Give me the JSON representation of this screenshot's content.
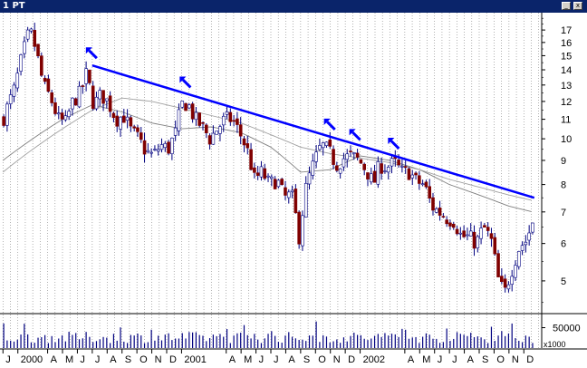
{
  "window": {
    "title": "1 PT",
    "buttons": [
      "minimize",
      "close"
    ]
  },
  "colors": {
    "titlebar": "#0a246a",
    "trendline": "#0000ff",
    "arrows": "#0000ff",
    "up_candle": "#ffffff",
    "down_candle": "#800000",
    "wick": "#000080",
    "moving_average": "#808080",
    "grid": "#808080"
  },
  "chart_data": {
    "type": "candlestick",
    "y_scale": "log",
    "ylim": [
      4.3,
      18.5
    ],
    "y_ticks": [
      5,
      6,
      7,
      8,
      9,
      10,
      11,
      12,
      13,
      14,
      15,
      16,
      17
    ],
    "x_labels": [
      "J",
      "2000",
      "A",
      "M",
      "J",
      "J",
      "A",
      "S",
      "O",
      "N",
      "D",
      "2001",
      "A",
      "M",
      "J",
      "J",
      "A",
      "S",
      "O",
      "N",
      "D",
      "2002",
      "A",
      "M",
      "J",
      "J",
      "A",
      "S",
      "O",
      "N",
      "D"
    ],
    "x_label_months": [
      0,
      1,
      3,
      4,
      5,
      6,
      7,
      8,
      9,
      10,
      11,
      12,
      15,
      16,
      17,
      18,
      19,
      20,
      21,
      22,
      23,
      24,
      27,
      28,
      29,
      30,
      31,
      32,
      33,
      34,
      35
    ],
    "x_month_range": [
      -0.2,
      36.2
    ],
    "grid": "vertical dotted",
    "price_keypoints_month_close": [
      [
        0.0,
        11.0
      ],
      [
        0.8,
        12.8
      ],
      [
        1.3,
        15.0
      ],
      [
        1.8,
        17.0
      ],
      [
        2.2,
        15.5
      ],
      [
        2.7,
        13.0
      ],
      [
        3.2,
        12.2
      ],
      [
        3.7,
        11.0
      ],
      [
        4.2,
        10.8
      ],
      [
        4.7,
        12.0
      ],
      [
        5.2,
        12.5
      ],
      [
        5.6,
        13.7
      ],
      [
        6.1,
        11.8
      ],
      [
        6.6,
        12.4
      ],
      [
        7.1,
        11.9
      ],
      [
        7.6,
        11.0
      ],
      [
        8.1,
        11.2
      ],
      [
        8.6,
        10.4
      ],
      [
        9.1,
        10.0
      ],
      [
        9.6,
        9.4
      ],
      [
        10.1,
        9.2
      ],
      [
        10.6,
        9.7
      ],
      [
        11.1,
        9.5
      ],
      [
        11.6,
        10.3
      ],
      [
        12.0,
        11.8
      ],
      [
        12.4,
        11.9
      ],
      [
        12.9,
        11.0
      ],
      [
        13.4,
        10.6
      ],
      [
        13.9,
        10.0
      ],
      [
        14.4,
        10.5
      ],
      [
        14.9,
        11.0
      ],
      [
        15.4,
        11.0
      ],
      [
        15.9,
        10.3
      ],
      [
        16.4,
        9.5
      ],
      [
        16.9,
        8.2
      ],
      [
        17.4,
        8.5
      ],
      [
        17.9,
        8.0
      ],
      [
        18.4,
        8.2
      ],
      [
        18.9,
        7.5
      ],
      [
        19.4,
        7.6
      ],
      [
        19.9,
        6.2
      ],
      [
        20.4,
        8.0
      ],
      [
        20.9,
        8.9
      ],
      [
        21.4,
        9.7
      ],
      [
        21.9,
        9.4
      ],
      [
        22.4,
        8.8
      ],
      [
        22.9,
        9.1
      ],
      [
        23.4,
        9.2
      ],
      [
        23.9,
        9.0
      ],
      [
        24.4,
        8.6
      ],
      [
        24.9,
        8.0
      ],
      [
        25.3,
        8.8
      ],
      [
        25.8,
        8.7
      ],
      [
        26.3,
        8.9
      ],
      [
        26.8,
        8.5
      ],
      [
        27.3,
        8.5
      ],
      [
        27.8,
        8.1
      ],
      [
        28.3,
        8.0
      ],
      [
        28.8,
        7.2
      ],
      [
        29.3,
        7.0
      ],
      [
        29.8,
        6.8
      ],
      [
        30.3,
        6.7
      ],
      [
        30.8,
        6.2
      ],
      [
        31.3,
        6.2
      ],
      [
        31.8,
        6.0
      ],
      [
        32.3,
        6.5
      ],
      [
        32.8,
        6.1
      ],
      [
        33.3,
        5.0
      ],
      [
        33.7,
        4.7
      ],
      [
        34.2,
        5.3
      ],
      [
        34.7,
        5.9
      ],
      [
        35.2,
        6.1
      ],
      [
        35.6,
        6.7
      ]
    ],
    "moving_averages": [
      {
        "color": "#808080",
        "keypoints_month_value": [
          [
            0.0,
            9.0
          ],
          [
            2.0,
            10.0
          ],
          [
            4.0,
            11.0
          ],
          [
            6.0,
            11.8
          ],
          [
            8.0,
            11.4
          ],
          [
            10.0,
            10.8
          ],
          [
            12.0,
            10.5
          ],
          [
            14.0,
            10.6
          ],
          [
            16.0,
            10.3
          ],
          [
            18.0,
            9.6
          ],
          [
            20.0,
            8.5
          ],
          [
            22.0,
            8.6
          ],
          [
            24.0,
            9.2
          ],
          [
            26.0,
            9.0
          ],
          [
            28.0,
            8.6
          ],
          [
            30.0,
            8.0
          ],
          [
            32.0,
            7.6
          ],
          [
            34.0,
            7.2
          ],
          [
            35.6,
            7.0
          ]
        ]
      },
      {
        "color": "#a0a0a0",
        "keypoints_month_value": [
          [
            0.0,
            8.5
          ],
          [
            2.0,
            9.5
          ],
          [
            4.0,
            10.5
          ],
          [
            6.0,
            11.5
          ],
          [
            8.0,
            12.2
          ],
          [
            10.0,
            12.0
          ],
          [
            12.0,
            11.6
          ],
          [
            14.0,
            11.2
          ],
          [
            16.0,
            10.8
          ],
          [
            18.0,
            10.2
          ],
          [
            20.0,
            9.6
          ],
          [
            22.0,
            9.3
          ],
          [
            24.0,
            9.1
          ],
          [
            26.0,
            8.9
          ],
          [
            28.0,
            8.6
          ],
          [
            30.0,
            8.2
          ],
          [
            32.0,
            7.9
          ],
          [
            34.0,
            7.6
          ],
          [
            35.6,
            7.4
          ]
        ]
      }
    ],
    "trendline": {
      "start": [
        6.0,
        14.3
      ],
      "end": [
        35.7,
        7.5
      ]
    },
    "arrow_markers": [
      [
        6.0,
        14.3
      ],
      [
        12.3,
        12.4
      ],
      [
        22.0,
        10.1
      ],
      [
        23.7,
        9.6
      ],
      [
        26.3,
        9.2
      ]
    ],
    "volume": {
      "y_tick": "50000",
      "unit": "x1000",
      "max": 80000
    }
  }
}
